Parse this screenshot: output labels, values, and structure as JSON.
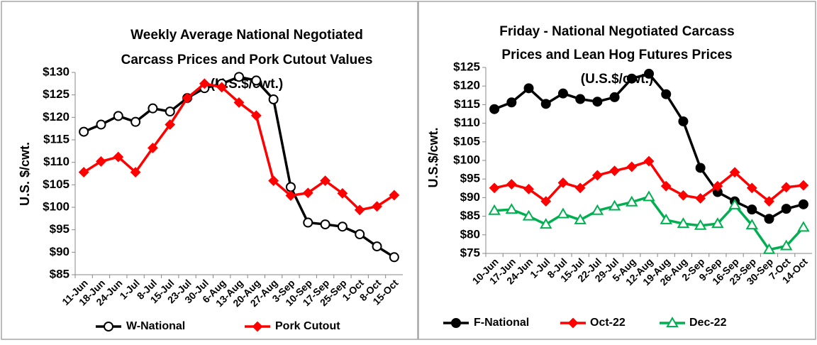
{
  "chart_data": [
    {
      "type": "line",
      "title_lines": [
        "Weekly Average National Negotiated",
        "Carcass  Prices and Pork Cutout Values",
        "(U.S.$/cwt.)"
      ],
      "y_label": "U.S. $/cwt.",
      "categories": [
        "11-Jun",
        "18-Jun",
        "24-Jun",
        "1-Jul",
        "8-Jul",
        "15-Jul",
        "23-Jul",
        "30-Jul",
        "6-Aug",
        "13-Aug",
        "20-Aug",
        "27-Aug",
        "3-Sep",
        "10-Sep",
        "17-Sep",
        "25-Sep",
        "1-Oct",
        "8-Oct",
        "15-Oct"
      ],
      "series": [
        {
          "name": "W-National",
          "color": "#000000",
          "marker": "circle-open",
          "values": [
            116.8,
            118.4,
            120.3,
            119.0,
            122.0,
            121.3,
            124.3,
            126.5,
            127.5,
            129.0,
            128.2,
            124.0,
            104.5,
            96.6,
            96.2,
            95.7,
            94.0,
            91.3,
            88.9
          ]
        },
        {
          "name": "Pork Cutout",
          "color": "#ff0000",
          "marker": "diamond",
          "values": [
            107.8,
            110.2,
            111.2,
            107.8,
            113.2,
            118.4,
            124.3,
            127.5,
            126.7,
            123.3,
            120.4,
            105.9,
            102.6,
            103.2,
            105.9,
            103.1,
            99.4,
            100.2,
            102.7
          ]
        }
      ],
      "ylim": [
        85,
        130
      ],
      "yticks": [
        {
          "value": 85,
          "label": "$85"
        },
        {
          "value": 90,
          "label": "$90"
        },
        {
          "value": 95,
          "label": "$95"
        },
        {
          "value": 100,
          "label": "$100"
        },
        {
          "value": 105,
          "label": "$105"
        },
        {
          "value": 110,
          "label": "$110"
        },
        {
          "value": 115,
          "label": "$115"
        },
        {
          "value": 120,
          "label": "$120"
        },
        {
          "value": 125,
          "label": "$125"
        },
        {
          "value": 130,
          "label": "$130"
        }
      ],
      "grid": false,
      "legend": "bottom"
    },
    {
      "type": "line",
      "title_lines": [
        "Friday - National Negotiated Carcass",
        "Prices and Lean Hog Futures Prices",
        "(U.S.$/cwt.)"
      ],
      "y_label": "U.S.$/cwt.",
      "categories": [
        "10-Jun",
        "17-Jun",
        "24-Jun",
        "1-Jul",
        "8-Jul",
        "15-Jul",
        "22-Jul",
        "29-Jul",
        "5-Aug",
        "12-Aug",
        "19-Aug",
        "26-Aug",
        "2-Sep",
        "9-Sep",
        "16-Sep",
        "23-Sep",
        "30-Sep",
        "7-Oct",
        "14-Oct"
      ],
      "series": [
        {
          "name": "F-National",
          "color": "#000000",
          "marker": "circle",
          "values": [
            113.8,
            115.6,
            119.4,
            115.2,
            118.0,
            116.5,
            115.8,
            117.0,
            122.0,
            123.3,
            117.8,
            110.5,
            98.0,
            91.5,
            89.0,
            86.8,
            84.3,
            87.0,
            88.2
          ]
        },
        {
          "name": "Oct-22",
          "color": "#ff0000",
          "marker": "diamond",
          "values": [
            92.6,
            93.6,
            92.3,
            89.0,
            94.0,
            92.6,
            96.0,
            97.2,
            98.3,
            99.8,
            93.1,
            90.6,
            89.8,
            93.1,
            96.8,
            92.6,
            89.0,
            92.8,
            93.3
          ]
        },
        {
          "name": "Dec-22",
          "color": "#00b050",
          "marker": "triangle-open",
          "values": [
            86.5,
            86.8,
            85.0,
            82.8,
            85.6,
            84.0,
            86.5,
            87.7,
            88.8,
            90.2,
            84.0,
            83.0,
            82.5,
            83.0,
            88.0,
            82.6,
            76.0,
            77.0,
            82.0
          ]
        }
      ],
      "ylim": [
        75,
        125
      ],
      "yticks": [
        {
          "value": 75,
          "label": "$75"
        },
        {
          "value": 80,
          "label": "$80"
        },
        {
          "value": 85,
          "label": "$85"
        },
        {
          "value": 90,
          "label": "$90"
        },
        {
          "value": 95,
          "label": "$95"
        },
        {
          "value": 100,
          "label": "$100"
        },
        {
          "value": 105,
          "label": "$105"
        },
        {
          "value": 110,
          "label": "$110"
        },
        {
          "value": 115,
          "label": "$115"
        },
        {
          "value": 120,
          "label": "$120"
        },
        {
          "value": 125,
          "label": "$125"
        }
      ],
      "grid": false,
      "legend": "bottom"
    }
  ]
}
